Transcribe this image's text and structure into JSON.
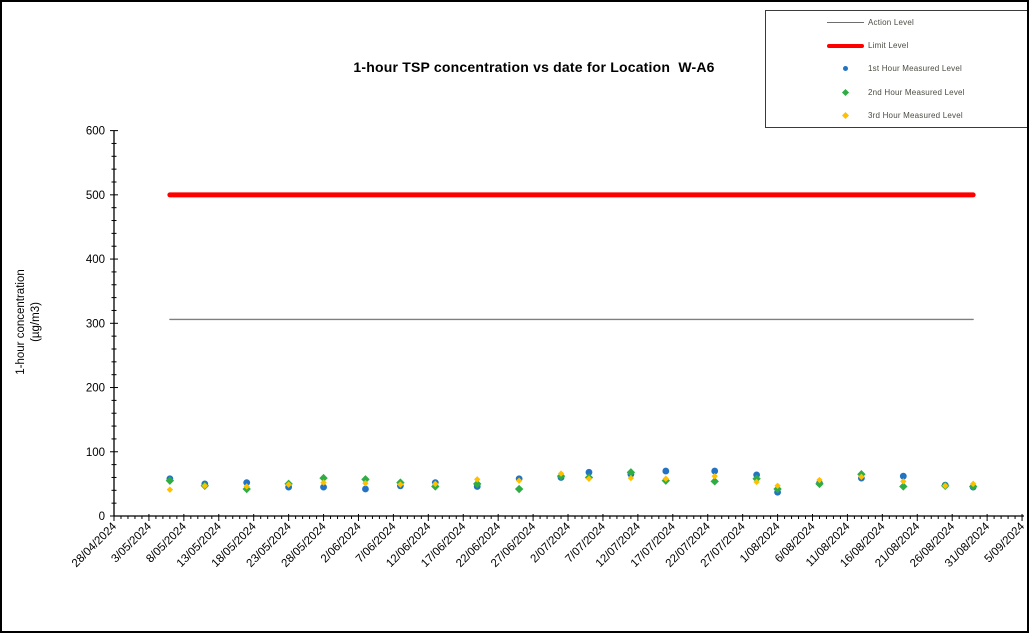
{
  "title": "1-hour TSP concentration vs date for Location  W-A6",
  "y_axis": {
    "title_line1": "1-hour concentration",
    "title_line2": "(µg/m3)"
  },
  "legend": {
    "items": [
      {
        "label": "Action Level",
        "marker": "thin-line",
        "color": "#6e6e6e"
      },
      {
        "label": "Limit Level",
        "marker": "thick-line",
        "color": "#ff0000"
      },
      {
        "label": "1st Hour Measured Level",
        "marker": "circle",
        "color": "#2273c3"
      },
      {
        "label": "2nd Hour Measured Level",
        "marker": "diamond",
        "color": "#2fad44"
      },
      {
        "label": "3rd Hour Measured Level",
        "marker": "diamond",
        "color": "#ffc000"
      }
    ]
  },
  "chart_data": {
    "type": "scatter",
    "title": "1-hour TSP concentration vs date for Location  W-A6",
    "xlabel": "",
    "ylabel": "1-hour concentration (µg/m3)",
    "ylim": [
      0,
      600
    ],
    "y_major_step": 100,
    "y_minor_step": 20,
    "grid": false,
    "legend_position": "top-right",
    "x_axis": {
      "range_days": [
        0,
        130
      ],
      "tick_step_days": 5,
      "minor_step_days": 1,
      "tick_labels": [
        "28/04/2024",
        "3/05/2024",
        "8/05/2024",
        "13/05/2024",
        "18/05/2024",
        "23/05/2024",
        "28/05/2024",
        "2/06/2024",
        "7/06/2024",
        "12/06/2024",
        "17/06/2024",
        "22/06/2024",
        "27/06/2024",
        "2/07/2024",
        "7/07/2024",
        "12/07/2024",
        "17/07/2024",
        "22/07/2024",
        "27/07/2024",
        "1/08/2024",
        "6/08/2024",
        "11/08/2024",
        "16/08/2024",
        "21/08/2024",
        "26/08/2024",
        "31/08/2024",
        "5/09/2024"
      ]
    },
    "reference_lines": [
      {
        "name": "Action Level",
        "value": 306,
        "color": "#7f7f7f",
        "thickness": 1.3,
        "span_days": [
          8,
          123
        ]
      },
      {
        "name": "Limit Level",
        "value": 500,
        "color": "#ff0000",
        "thickness": 5,
        "span_days": [
          8,
          123
        ]
      }
    ],
    "measurements": {
      "dates": [
        "6/05/2024",
        "11/05/2024",
        "17/05/2024",
        "23/05/2024",
        "28/05/2024",
        "3/06/2024",
        "8/06/2024",
        "13/06/2024",
        "19/06/2024",
        "25/06/2024",
        "1/07/2024",
        "5/07/2024",
        "11/07/2024",
        "16/07/2024",
        "23/07/2024",
        "29/07/2024",
        "1/08/2024",
        "7/08/2024",
        "13/08/2024",
        "19/08/2024",
        "25/08/2024",
        "29/08/2024"
      ],
      "day_offsets": [
        8,
        13,
        19,
        25,
        30,
        36,
        41,
        46,
        52,
        58,
        64,
        68,
        74,
        79,
        86,
        92,
        95,
        101,
        107,
        113,
        119,
        123
      ],
      "series": [
        {
          "name": "1st Hour Measured Level",
          "marker": "circle",
          "color": "#2273c3",
          "values": [
            58,
            50,
            52,
            45,
            45,
            42,
            47,
            52,
            46,
            58,
            60,
            68,
            65,
            70,
            70,
            64,
            37,
            51,
            59,
            62,
            48,
            45
          ]
        },
        {
          "name": "2nd Hour Measured Level",
          "marker": "diamond",
          "color": "#2fad44",
          "values": [
            55,
            47,
            42,
            50,
            59,
            57,
            52,
            46,
            50,
            42,
            62,
            60,
            68,
            55,
            54,
            58,
            42,
            50,
            65,
            46,
            47,
            46
          ]
        },
        {
          "name": "3rd Hour Measured Level",
          "marker": "diamond",
          "color": "#ffc000",
          "values": [
            41,
            47,
            46,
            49,
            52,
            51,
            49,
            50,
            57,
            55,
            66,
            58,
            59,
            58,
            62,
            53,
            47,
            56,
            61,
            54,
            47,
            50
          ]
        }
      ]
    }
  }
}
